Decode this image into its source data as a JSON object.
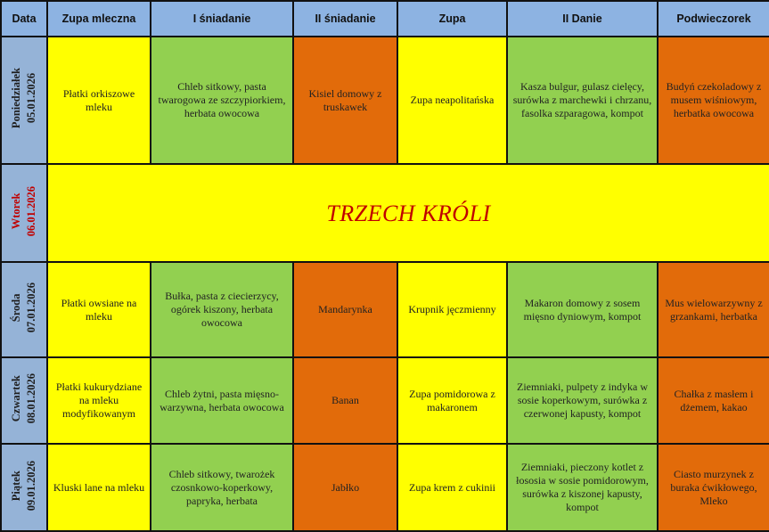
{
  "headers": [
    "Data",
    "Zupa mleczna",
    "I śniadanie",
    "II śniadanie",
    "Zupa",
    "II Danie",
    "Podwieczorek"
  ],
  "colors": {
    "header": "#8db3e2",
    "date": "#95b3d7",
    "yellow": "#ffff00",
    "green": "#92d050",
    "orange": "#e26b0a",
    "holiday_text": "#c00000"
  },
  "days": [
    {
      "day": "Poniedziałek",
      "date": "05.01.2026",
      "zupa_mleczna": "Płatki orkiszowe mleku",
      "i_sniadanie": "Chleb sitkowy, pasta twarogowa ze szczypiorkiem, herbata owocowa",
      "ii_sniadanie": "Kisiel domowy z truskawek",
      "zupa": "Zupa neapolitańska",
      "ii_danie": "Kasza bulgur, gulasz cielęcy, surówka z marchewki i chrzanu, fasolka szparagowa, kompot",
      "podwieczorek": "Budyń czekoladowy z musem wiśniowym, herbatka owocowa"
    },
    {
      "day": "Wtorek",
      "date": "06.01.2026",
      "holiday": "TRZECH KRÓLI"
    },
    {
      "day": "Środa",
      "date": "07.01.2026",
      "zupa_mleczna": "Płatki owsiane na mleku",
      "i_sniadanie": "Bułka, pasta z ciecierzycy, ogórek kiszony, herbata owocowa",
      "ii_sniadanie": "Mandarynka",
      "zupa": "Krupnik jęczmienny",
      "ii_danie": "Makaron domowy z sosem mięsno dyniowym, kompot",
      "podwieczorek": "Mus wielowarzywny z grzankami, herbatka"
    },
    {
      "day": "Czwartek",
      "date": "08.01.2026",
      "zupa_mleczna": "Płatki kukurydziane na mleku modyfikowanym",
      "i_sniadanie": "Chleb żytni, pasta mięsno-warzywna, herbata owocowa",
      "ii_sniadanie": "Banan",
      "zupa": "Zupa pomidorowa z makaronem",
      "ii_danie": "Ziemniaki, pulpety z indyka w sosie koperkowym, surówka z czerwonej kapusty, kompot",
      "podwieczorek": "Chałka z masłem i dżemem, kakao"
    },
    {
      "day": "Piątek",
      "date": "09.01.2026",
      "zupa_mleczna": "Kluski lane na mleku",
      "i_sniadanie": "Chleb sitkowy, twarożek czosnkowo-koperkowy, papryka, herbata",
      "ii_sniadanie": "Jabłko",
      "zupa": "Zupa krem z cukinii",
      "ii_danie": "Ziemniaki, pieczony kotlet z łososia w sosie pomidorowym, surówka z kiszonej kapusty, kompot",
      "podwieczorek": "Ciasto murzynek z buraka ćwikłowego, Mleko"
    }
  ]
}
